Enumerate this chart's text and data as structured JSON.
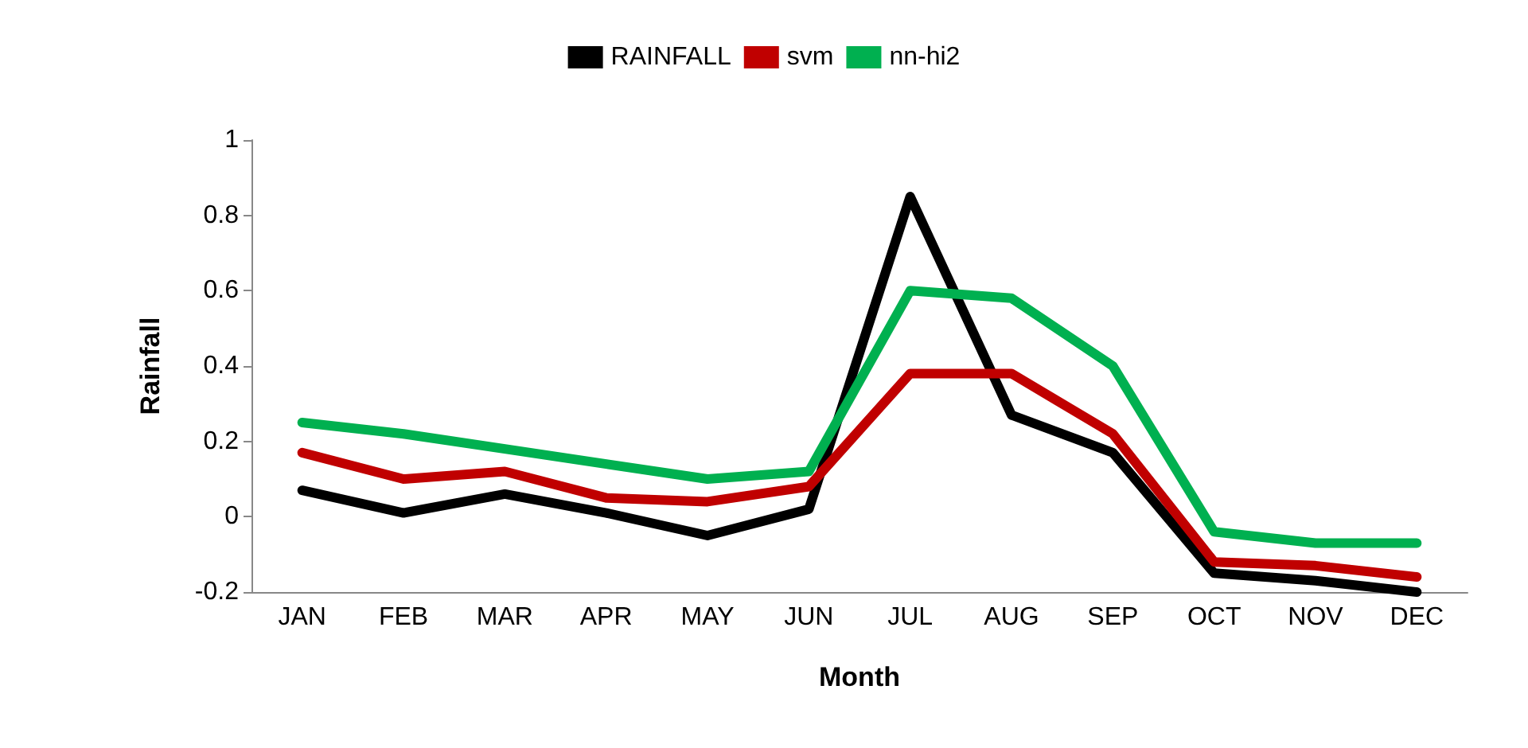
{
  "chart_data": {
    "type": "line",
    "xlabel": "Month",
    "ylabel": "Rainfall",
    "categories": [
      "JAN",
      "FEB",
      "MAR",
      "APR",
      "MAY",
      "JUN",
      "JUL",
      "AUG",
      "SEP",
      "OCT",
      "NOV",
      "DEC"
    ],
    "series": [
      {
        "name": "RAINFALL",
        "color": "#000000",
        "values": [
          0.07,
          0.01,
          0.06,
          0.01,
          -0.05,
          0.02,
          0.85,
          0.27,
          0.17,
          -0.15,
          -0.17,
          -0.2
        ]
      },
      {
        "name": "svm",
        "color": "#c00000",
        "values": [
          0.17,
          0.1,
          0.12,
          0.05,
          0.04,
          0.08,
          0.38,
          0.38,
          0.22,
          -0.12,
          -0.13,
          -0.16
        ]
      },
      {
        "name": "nn-hi2",
        "color": "#00b050",
        "values": [
          0.25,
          0.22,
          0.18,
          0.14,
          0.1,
          0.12,
          0.6,
          0.58,
          0.4,
          -0.04,
          -0.07,
          -0.07
        ]
      }
    ],
    "ylim": [
      -0.2,
      1
    ],
    "yticks": [
      -0.2,
      0,
      0.2,
      0.4,
      0.6,
      0.8,
      1
    ],
    "grid": false,
    "legend": "top",
    "marker": "none",
    "line_style": "solid"
  }
}
